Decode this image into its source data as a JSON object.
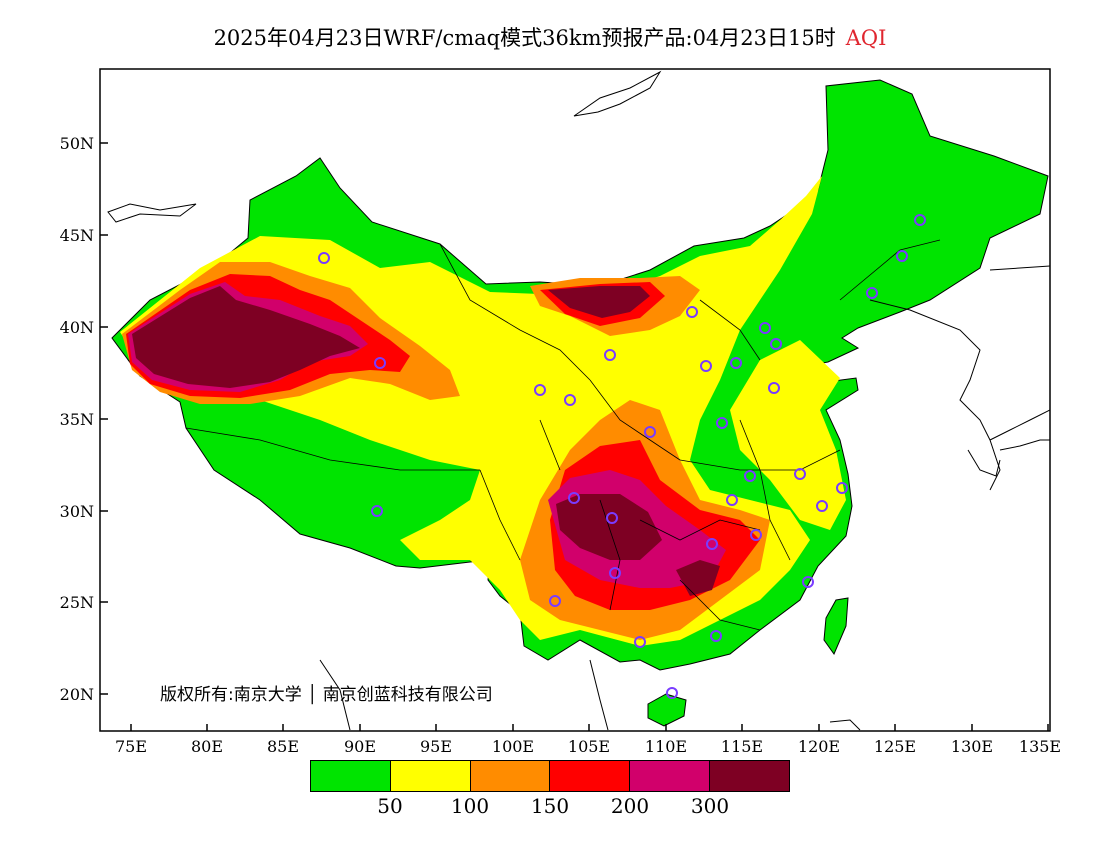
{
  "title": {
    "text": "2025年04月23日WRF/cmaq模式36km预报产品:04月23日15时",
    "variable": "AQI"
  },
  "axes": {
    "lat_labels": [
      "50N",
      "45N",
      "40N",
      "35N",
      "30N",
      "25N",
      "20N"
    ],
    "lon_labels": [
      "75E",
      "80E",
      "85E",
      "90E",
      "95E",
      "100E",
      "105E",
      "110E",
      "115E",
      "120E",
      "125E",
      "130E",
      "135E"
    ]
  },
  "copyright": {
    "text": "版权所有:南京大学",
    "company": "南京创蓝科技有限公司"
  },
  "legend": {
    "colors": [
      "#00e400",
      "#ffff00",
      "#ff8c00",
      "#ff0000",
      "#d1006b",
      "#7e0023"
    ],
    "labels": [
      "50",
      "100",
      "150",
      "200",
      "300"
    ]
  },
  "colors": {
    "background": "#ffffff",
    "ocean": "#ffffff",
    "border": "#000000",
    "station_marker": "#7a3cff"
  }
}
